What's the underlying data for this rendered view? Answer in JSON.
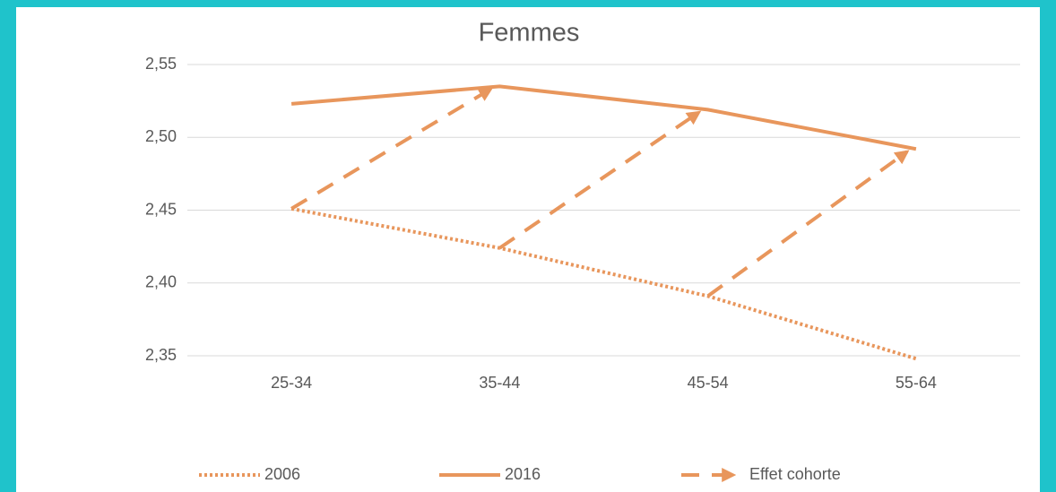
{
  "chart_data": {
    "type": "line",
    "title": "Femmes",
    "categories": [
      "25-34",
      "35-44",
      "45-54",
      "55-64"
    ],
    "series": [
      {
        "name": "2006",
        "color": "#e8965c",
        "style": "dotted",
        "values": [
          2.451,
          2.424,
          2.391,
          2.348
        ]
      },
      {
        "name": "2016",
        "color": "#e8965c",
        "style": "solid",
        "values": [
          2.523,
          2.535,
          2.519,
          2.492
        ]
      },
      {
        "name": "Effet cohorte",
        "color": "#e8965c",
        "style": "dashed-arrow"
      }
    ],
    "ylim": [
      2.35,
      2.55
    ],
    "yticks": [
      {
        "value": 2.35,
        "label": "2,35"
      },
      {
        "value": 2.4,
        "label": "2,40"
      },
      {
        "value": 2.45,
        "label": "2,45"
      },
      {
        "value": 2.5,
        "label": "2,50"
      },
      {
        "value": 2.55,
        "label": "2,55"
      }
    ],
    "grid": true,
    "legend": "bottom"
  }
}
